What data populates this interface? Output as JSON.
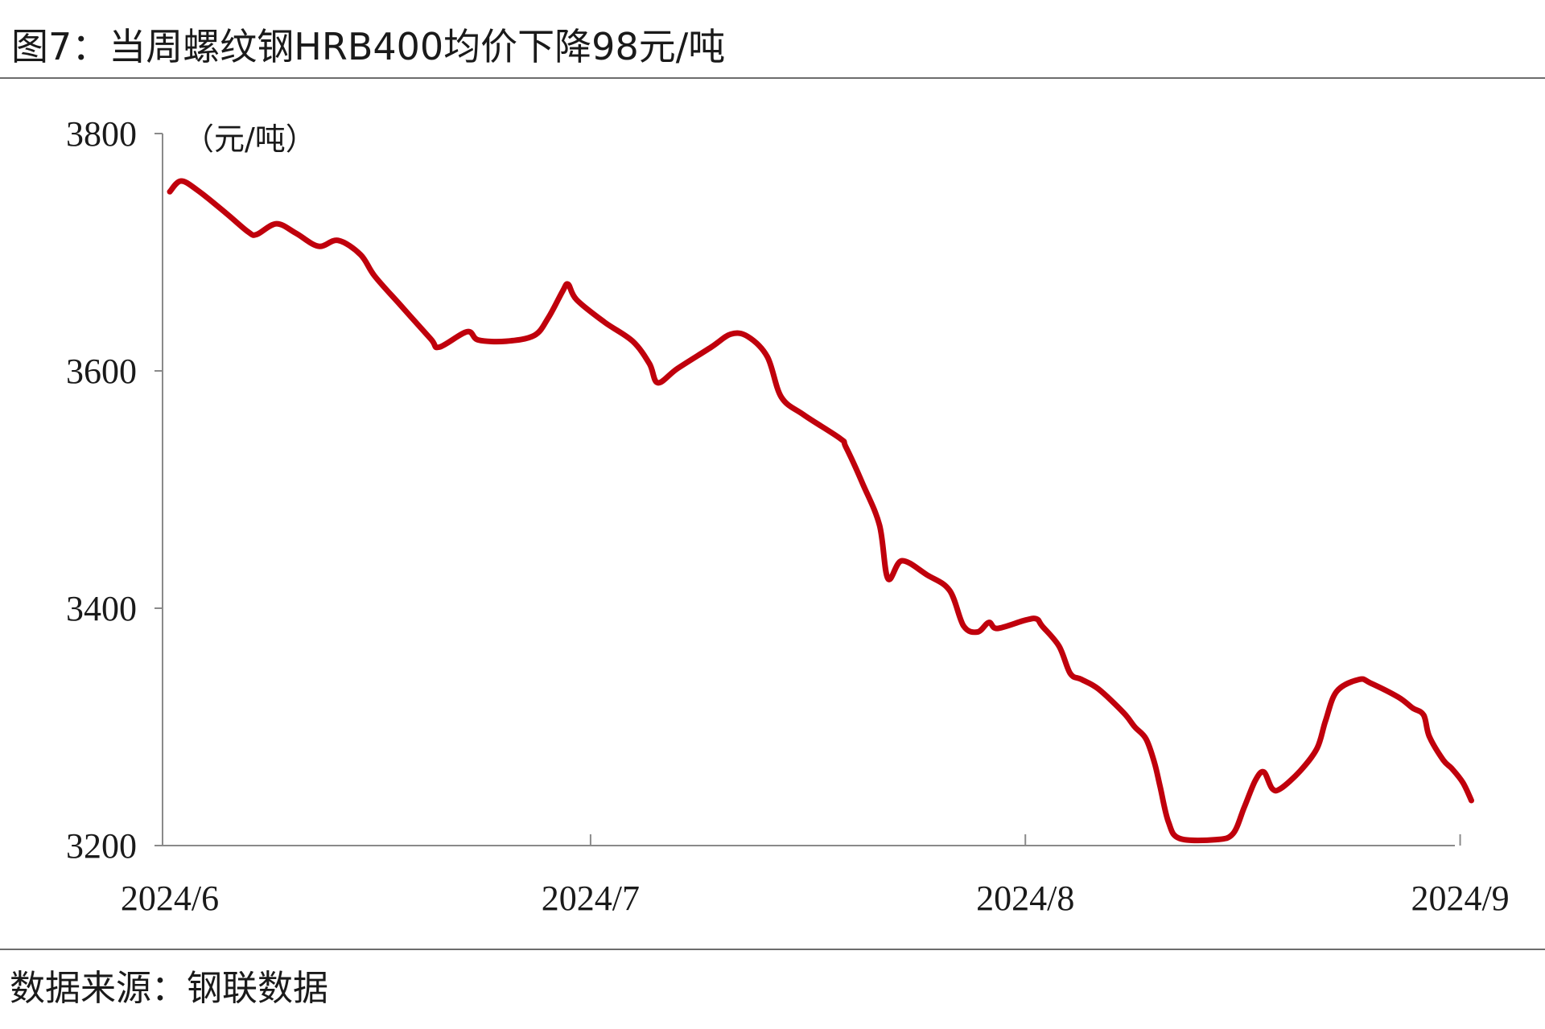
{
  "title": "图7：当周螺纹钢HRB400均价下降98元/吨",
  "source": "数据来源：钢联数据",
  "chart_data": {
    "type": "line",
    "unit_label": "（元/吨）",
    "ylim": [
      3200,
      3800
    ],
    "y_ticks": [
      3200,
      3400,
      3600,
      3800
    ],
    "x_ticks": [
      {
        "label": "2024/6",
        "day": 0
      },
      {
        "label": "2024/7",
        "day": 30
      },
      {
        "label": "2024/8",
        "day": 61
      },
      {
        "label": "2024/9",
        "day": 92
      }
    ],
    "x_range_days": [
      0,
      92
    ],
    "grid": false,
    "legend": "none",
    "line_color": "#c0000c",
    "series": [
      {
        "points": [
          [
            0,
            3751
          ],
          [
            0.8,
            3760
          ],
          [
            2,
            3752
          ],
          [
            4,
            3733
          ],
          [
            5.6,
            3717
          ],
          [
            6.2,
            3715
          ],
          [
            7.6,
            3724
          ],
          [
            9,
            3716
          ],
          [
            10.6,
            3705
          ],
          [
            12,
            3710
          ],
          [
            13.6,
            3698
          ],
          [
            14.6,
            3680
          ],
          [
            16.4,
            3656
          ],
          [
            18.6,
            3627
          ],
          [
            19.2,
            3620
          ],
          [
            21.2,
            3633
          ],
          [
            22,
            3626
          ],
          [
            24,
            3625
          ],
          [
            26,
            3630
          ],
          [
            27,
            3645
          ],
          [
            28,
            3667
          ],
          [
            28.4,
            3673
          ],
          [
            29,
            3660
          ],
          [
            31,
            3641
          ],
          [
            33,
            3625
          ],
          [
            34.2,
            3606
          ],
          [
            34.8,
            3590
          ],
          [
            36.2,
            3602
          ],
          [
            38.6,
            3620
          ],
          [
            40,
            3631
          ],
          [
            41.2,
            3629
          ],
          [
            42.6,
            3612
          ],
          [
            43.6,
            3578
          ],
          [
            45.2,
            3563
          ],
          [
            47.8,
            3543
          ],
          [
            48.2,
            3536
          ],
          [
            49.4,
            3505
          ],
          [
            50.6,
            3470
          ],
          [
            51.2,
            3425
          ],
          [
            52.2,
            3440
          ],
          [
            54,
            3428
          ],
          [
            55.6,
            3415
          ],
          [
            56.6,
            3385
          ],
          [
            57.6,
            3380
          ],
          [
            58.4,
            3388
          ],
          [
            59,
            3383
          ],
          [
            61,
            3390
          ],
          [
            61.8,
            3391
          ],
          [
            62.2,
            3385
          ],
          [
            63.4,
            3368
          ],
          [
            64.2,
            3345
          ],
          [
            65,
            3340
          ],
          [
            66.2,
            3332
          ],
          [
            68,
            3312
          ],
          [
            68.8,
            3300
          ],
          [
            69.6,
            3290
          ],
          [
            70.2,
            3270
          ],
          [
            70.6,
            3250
          ],
          [
            71.2,
            3220
          ],
          [
            72,
            3206
          ],
          [
            74.6,
            3205
          ],
          [
            75.8,
            3210
          ],
          [
            76.6,
            3232
          ],
          [
            77.4,
            3255
          ],
          [
            78,
            3262
          ],
          [
            78.6,
            3248
          ],
          [
            79.2,
            3248
          ],
          [
            80.6,
            3263
          ],
          [
            81.8,
            3282
          ],
          [
            82.4,
            3305
          ],
          [
            83.2,
            3330
          ],
          [
            84.8,
            3340
          ],
          [
            85.6,
            3337
          ],
          [
            87.6,
            3325
          ],
          [
            88.6,
            3316
          ],
          [
            89.4,
            3310
          ],
          [
            89.8,
            3292
          ],
          [
            90.8,
            3272
          ],
          [
            91.4,
            3265
          ],
          [
            92.2,
            3253
          ],
          [
            92.8,
            3238
          ]
        ]
      }
    ]
  }
}
